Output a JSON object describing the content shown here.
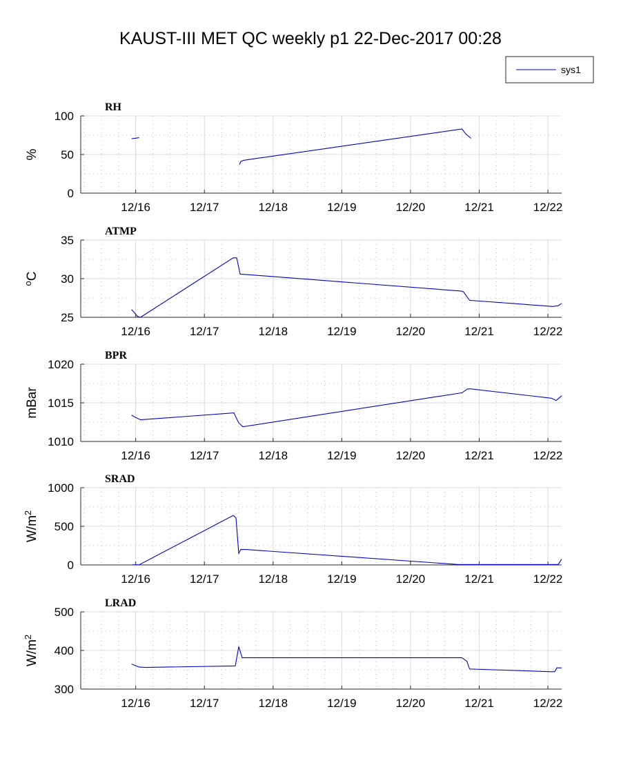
{
  "title": "KAUST-III MET QC weekly p1 22-Dec-2017 00:28",
  "legend": {
    "label": "sys1",
    "color": "#0000cc",
    "placement": "top-right"
  },
  "chart_data": [
    {
      "type": "line",
      "panel_label": "RH",
      "ylabel": "%",
      "ylim": [
        0,
        100
      ],
      "yticks": [
        0,
        50,
        100
      ],
      "xlim": [
        15.2,
        22.2
      ],
      "xticks": [
        16,
        17,
        18,
        19,
        20,
        21,
        22
      ],
      "xticklabels": [
        "12/16",
        "12/17",
        "12/18",
        "12/19",
        "12/20",
        "12/21",
        "12/22"
      ],
      "grid": true,
      "series": [
        {
          "name": "sys1",
          "segments": [
            [
              [
                15.94,
                70.5
              ],
              [
                16.0,
                71.2
              ],
              [
                16.05,
                71.8
              ]
            ],
            [
              [
                17.51,
                37
              ],
              [
                17.53,
                41
              ],
              [
                17.57,
                42.5
              ],
              [
                20.75,
                83
              ],
              [
                20.8,
                77
              ],
              [
                20.88,
                71
              ]
            ]
          ]
        }
      ]
    },
    {
      "type": "line",
      "panel_label": "ATMP",
      "ylabel_base": "C",
      "ylabel_sup": "o",
      "ylim": [
        25,
        35
      ],
      "yticks": [
        25,
        30,
        35
      ],
      "xlim": [
        15.2,
        22.2
      ],
      "xticks": [
        16,
        17,
        18,
        19,
        20,
        21,
        22
      ],
      "xticklabels": [
        "12/16",
        "12/17",
        "12/18",
        "12/19",
        "12/20",
        "12/21",
        "12/22"
      ],
      "grid": true,
      "series": [
        {
          "name": "sys1",
          "segments": [
            [
              [
                15.94,
                26.0
              ],
              [
                15.99,
                25.5
              ],
              [
                16.03,
                25.1
              ],
              [
                16.07,
                25.0
              ],
              [
                17.42,
                32.7
              ],
              [
                17.47,
                32.7
              ],
              [
                17.52,
                30.6
              ],
              [
                20.73,
                28.4
              ],
              [
                20.77,
                28.3
              ],
              [
                20.86,
                27.2
              ],
              [
                22.07,
                26.4
              ],
              [
                22.15,
                26.5
              ],
              [
                22.2,
                26.8
              ]
            ]
          ]
        }
      ]
    },
    {
      "type": "line",
      "panel_label": "BPR",
      "ylabel": "mBar",
      "ylim": [
        1010,
        1020
      ],
      "yticks": [
        1010,
        1015,
        1020
      ],
      "xlim": [
        15.2,
        22.2
      ],
      "xticks": [
        16,
        17,
        18,
        19,
        20,
        21,
        22
      ],
      "xticklabels": [
        "12/16",
        "12/17",
        "12/18",
        "12/19",
        "12/20",
        "12/21",
        "12/22"
      ],
      "grid": true,
      "series": [
        {
          "name": "sys1",
          "segments": [
            [
              [
                15.94,
                1013.4
              ],
              [
                16.0,
                1013.1
              ],
              [
                16.07,
                1012.8
              ],
              [
                17.43,
                1013.7
              ],
              [
                17.5,
                1012.4
              ],
              [
                17.56,
                1011.9
              ],
              [
                20.75,
                1016.3
              ],
              [
                20.83,
                1016.8
              ],
              [
                20.88,
                1016.8
              ],
              [
                22.05,
                1015.6
              ],
              [
                22.12,
                1015.3
              ],
              [
                22.2,
                1015.9
              ]
            ]
          ]
        }
      ]
    },
    {
      "type": "line",
      "panel_label": "SRAD",
      "ylabel_base": "W/m",
      "ylabel_sup": "2",
      "ylim": [
        0,
        1000
      ],
      "yticks": [
        0,
        500,
        1000
      ],
      "xlim": [
        15.2,
        22.2
      ],
      "xticks": [
        16,
        17,
        18,
        19,
        20,
        21,
        22
      ],
      "xticklabels": [
        "12/16",
        "12/17",
        "12/18",
        "12/19",
        "12/20",
        "12/21",
        "12/22"
      ],
      "grid": true,
      "series": [
        {
          "name": "sys1",
          "segments": [
            [
              [
                15.95,
                2
              ],
              [
                16.05,
                2
              ],
              [
                17.42,
                640
              ],
              [
                17.46,
                610
              ],
              [
                17.5,
                150
              ],
              [
                17.53,
                200
              ],
              [
                17.6,
                200
              ],
              [
                20.7,
                5
              ],
              [
                22.15,
                5
              ],
              [
                22.2,
                75
              ]
            ]
          ]
        }
      ]
    },
    {
      "type": "line",
      "panel_label": "LRAD",
      "ylabel_base": "W/m",
      "ylabel_sup": "2",
      "ylim": [
        300,
        500
      ],
      "yticks": [
        300,
        400,
        500
      ],
      "xlim": [
        15.2,
        22.2
      ],
      "xticks": [
        16,
        17,
        18,
        19,
        20,
        21,
        22
      ],
      "xticklabels": [
        "12/16",
        "12/17",
        "12/18",
        "12/19",
        "12/20",
        "12/21",
        "12/22"
      ],
      "grid": true,
      "series": [
        {
          "name": "sys1",
          "segments": [
            [
              [
                15.94,
                365
              ],
              [
                16.05,
                357
              ],
              [
                16.15,
                356
              ],
              [
                17.45,
                360
              ],
              [
                17.5,
                410
              ],
              [
                17.55,
                381
              ],
              [
                20.75,
                381
              ],
              [
                20.82,
                372
              ],
              [
                20.86,
                352
              ],
              [
                22.05,
                345
              ],
              [
                22.1,
                345
              ],
              [
                22.13,
                355
              ],
              [
                22.2,
                355
              ]
            ]
          ]
        }
      ]
    }
  ]
}
